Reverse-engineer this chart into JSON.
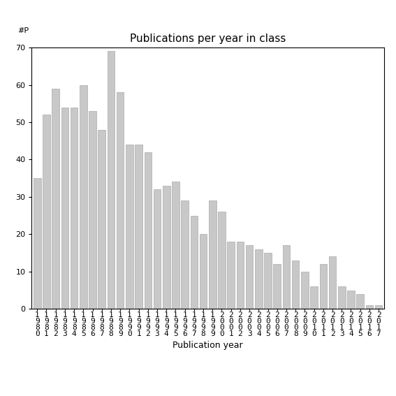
{
  "title": "Publications per year in class",
  "xlabel": "Publication year",
  "ylabel_annotation": "#P",
  "years": [
    "1980",
    "1981",
    "1982",
    "1983",
    "1984",
    "1985",
    "1986",
    "1987",
    "1988",
    "1989",
    "1990",
    "1991",
    "1992",
    "1993",
    "1994",
    "1995",
    "1996",
    "1997",
    "1998",
    "1999",
    "2000",
    "2001",
    "2002",
    "2003",
    "2004",
    "2005",
    "2006",
    "2007",
    "2008",
    "2009",
    "2010",
    "2011",
    "2012",
    "2013",
    "2014",
    "2015",
    "2016",
    "2017"
  ],
  "values": [
    35,
    52,
    59,
    54,
    54,
    60,
    53,
    48,
    69,
    58,
    44,
    44,
    42,
    32,
    33,
    34,
    29,
    25,
    20,
    29,
    26,
    18,
    18,
    17,
    16,
    15,
    12,
    17,
    13,
    10,
    6,
    12,
    14,
    6,
    5,
    4,
    1,
    1
  ],
  "bar_color": "#c8c8c8",
  "bar_edgecolor": "#aaaaaa",
  "ylim": [
    0,
    70
  ],
  "yticks": [
    0,
    10,
    20,
    30,
    40,
    50,
    60,
    70
  ],
  "bg_color": "#ffffff",
  "title_fontsize": 11,
  "xlabel_fontsize": 9,
  "tick_fontsize": 8
}
